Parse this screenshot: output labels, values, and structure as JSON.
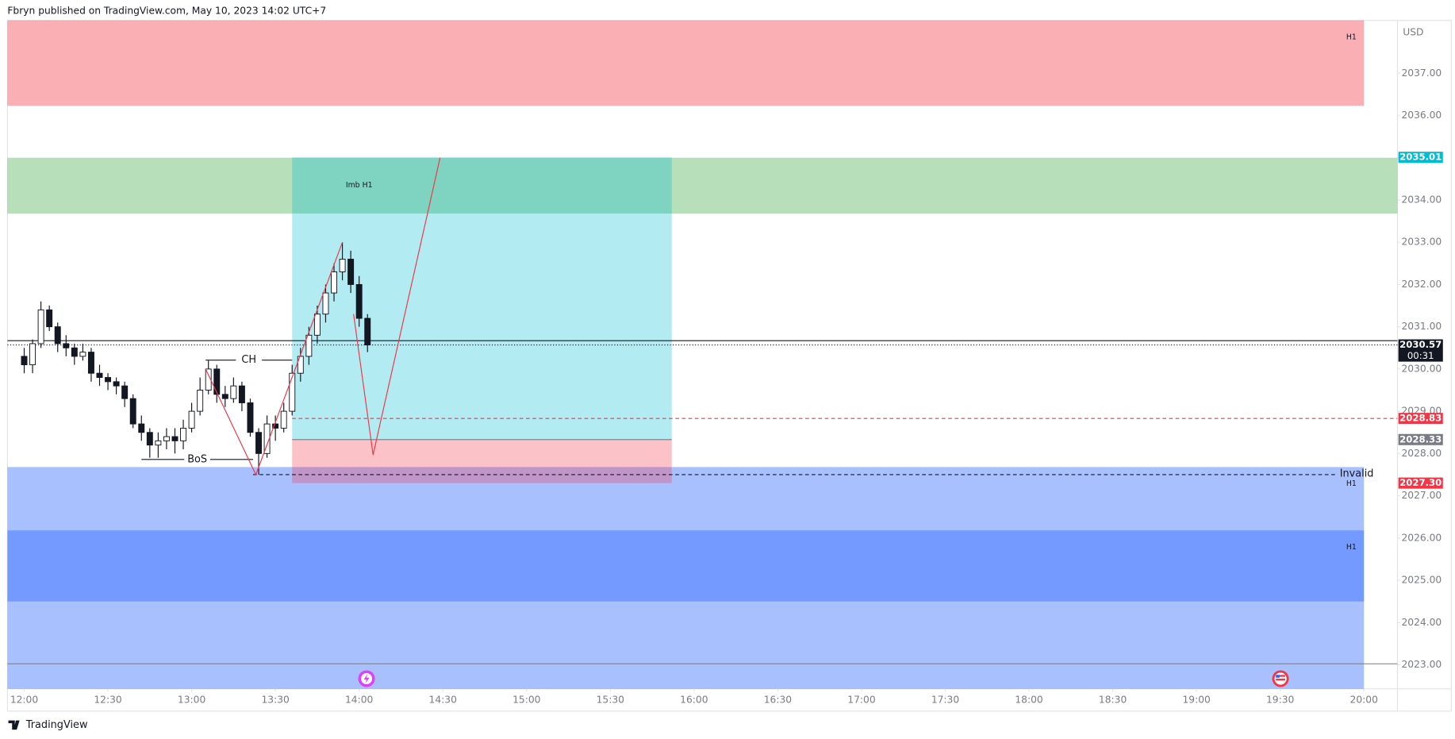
{
  "header": {
    "publisher": "Fbryn published on TradingView.com, May 10, 2023 14:02 UTC+7",
    "brand": "TradingView"
  },
  "chart_data": {
    "type": "candlestick",
    "currency": "USD",
    "xlim": [
      "11:54",
      "20:12"
    ],
    "ylim": [
      2022.43,
      2038.25
    ],
    "xticks": [
      "12:00",
      "12:30",
      "13:00",
      "13:30",
      "14:00",
      "14:30",
      "15:00",
      "15:30",
      "16:00",
      "16:30",
      "17:00",
      "17:30",
      "18:00",
      "18:30",
      "19:00",
      "19:30",
      "20:00"
    ],
    "yticks": [
      {
        "value": 2023,
        "label": "2023.00"
      },
      {
        "value": 2024,
        "label": "2024.00"
      },
      {
        "value": 2025,
        "label": "2025.00"
      },
      {
        "value": 2026,
        "label": "2026.00"
      },
      {
        "value": 2027,
        "label": "2027.00"
      },
      {
        "value": 2028,
        "label": "2028.00"
      },
      {
        "value": 2029,
        "label": "2029.00"
      },
      {
        "value": 2030,
        "label": "2030.00"
      },
      {
        "value": 2031,
        "label": "2031.00"
      },
      {
        "value": 2032,
        "label": "2032.00"
      },
      {
        "value": 2033,
        "label": "2033.00"
      },
      {
        "value": 2034,
        "label": "2034.00"
      },
      {
        "value": 2035,
        "label": "2035.00"
      },
      {
        "value": 2036,
        "label": "2036.00"
      },
      {
        "value": 2037,
        "label": "2037.00"
      }
    ],
    "x": [
      "12:00",
      "12:03",
      "12:06",
      "12:09",
      "12:12",
      "12:15",
      "12:18",
      "12:21",
      "12:24",
      "12:27",
      "12:30",
      "12:33",
      "12:36",
      "12:39",
      "12:42",
      "12:45",
      "12:48",
      "12:51",
      "12:54",
      "12:57",
      "13:00",
      "13:03",
      "13:06",
      "13:09",
      "13:12",
      "13:15",
      "13:18",
      "13:21",
      "13:24",
      "13:27",
      "13:30",
      "13:33",
      "13:36",
      "13:39",
      "13:42",
      "13:45",
      "13:48",
      "13:51",
      "13:54",
      "13:57",
      "14:00",
      "14:03"
    ],
    "open": [
      2030.3,
      2030.1,
      2030.6,
      2031.4,
      2031.0,
      2030.6,
      2030.5,
      2030.3,
      2030.4,
      2029.9,
      2029.8,
      2029.7,
      2029.6,
      2029.3,
      2028.7,
      2028.5,
      2028.2,
      2028.3,
      2028.4,
      2028.3,
      2028.6,
      2029.0,
      2029.5,
      2030.0,
      2029.4,
      2029.3,
      2029.6,
      2029.2,
      2028.5,
      2028.0,
      2028.7,
      2028.6,
      2029.0,
      2029.9,
      2030.3,
      2030.8,
      2031.3,
      2031.8,
      2032.3,
      2032.6,
      2032.0,
      2031.2
    ],
    "high": [
      2030.5,
      2030.7,
      2031.6,
      2031.5,
      2031.1,
      2030.8,
      2030.6,
      2030.6,
      2030.5,
      2030.1,
      2029.9,
      2029.8,
      2029.7,
      2029.4,
      2028.9,
      2028.6,
      2028.5,
      2028.6,
      2028.6,
      2028.8,
      2029.2,
      2029.8,
      2030.2,
      2030.1,
      2029.6,
      2029.8,
      2029.7,
      2029.3,
      2028.6,
      2028.9,
      2028.9,
      2029.2,
      2030.1,
      2030.5,
      2031.0,
      2031.5,
      2032.0,
      2032.5,
      2033.0,
      2032.8,
      2032.2,
      2031.3
    ],
    "low": [
      2029.9,
      2029.9,
      2030.5,
      2030.9,
      2030.4,
      2030.3,
      2030.1,
      2030.2,
      2029.7,
      2029.6,
      2029.5,
      2029.4,
      2029.1,
      2028.6,
      2028.3,
      2027.9,
      2027.9,
      2028.1,
      2028.0,
      2028.1,
      2028.5,
      2028.9,
      2029.4,
      2029.2,
      2029.1,
      2029.2,
      2029.0,
      2028.4,
      2027.5,
      2027.9,
      2028.3,
      2028.5,
      2028.9,
      2029.7,
      2030.1,
      2030.6,
      2031.1,
      2031.6,
      2032.1,
      2031.8,
      2031.0,
      2030.4
    ],
    "close": [
      2030.1,
      2030.6,
      2031.4,
      2031.0,
      2030.6,
      2030.5,
      2030.3,
      2030.4,
      2029.9,
      2029.8,
      2029.7,
      2029.6,
      2029.3,
      2028.7,
      2028.5,
      2028.2,
      2028.3,
      2028.4,
      2028.3,
      2028.6,
      2029.0,
      2029.5,
      2030.0,
      2029.4,
      2029.3,
      2029.6,
      2029.2,
      2028.5,
      2028.0,
      2028.7,
      2028.6,
      2029.0,
      2029.9,
      2030.3,
      2030.8,
      2031.3,
      2031.8,
      2032.3,
      2032.6,
      2032.0,
      2031.2,
      2030.57
    ],
    "zones": [
      {
        "label": "H1",
        "top": 2038.25,
        "bottom": 2036.23,
        "start": "11:54",
        "end": "20:00",
        "color": "rgba(242,54,69,0.4)"
      },
      {
        "top": 2035.0,
        "bottom": 2033.68,
        "start": "11:54",
        "end": "20:12",
        "color": "rgba(76,175,80,0.4)"
      },
      {
        "label": "H1",
        "top": 2027.68,
        "bottom": 2024.5,
        "start": "11:54",
        "end": "20:00",
        "color": "rgba(41,98,255,0.4)"
      },
      {
        "label": "H1",
        "top": 2026.18,
        "bottom": 2022.43,
        "start": "11:54",
        "end": "20:00",
        "color": "rgba(41,98,255,0.4)"
      }
    ],
    "position": {
      "start": "13:36",
      "end": "15:52",
      "target": 2035.01,
      "entry": 2028.33,
      "stop": 2027.3,
      "profit_color": "rgba(0,188,212,0.3)",
      "loss_color": "rgba(242,54,69,0.3)"
    },
    "lines": [
      {
        "value": 2030.67,
        "color": "#131722",
        "dash": "none",
        "start": "11:54"
      },
      {
        "value": 2030.57,
        "color": "#131722",
        "dash": "1 2",
        "start": "11:54"
      },
      {
        "value": 2028.83,
        "color": "#f23645",
        "dash": "4 3",
        "start": "13:36"
      },
      {
        "value": 2027.5,
        "color": "#131722",
        "dash": "4 3",
        "start": "13:22",
        "end": "19:50",
        "label": "Invalid"
      }
    ],
    "structure": [
      {
        "label": "CH",
        "value": 2030.21,
        "start": "13:05",
        "end": "13:36"
      },
      {
        "label": "BoS",
        "value": 2027.86,
        "start": "12:42",
        "end": "13:22"
      }
    ],
    "annotations": [
      {
        "text": "Imb H1",
        "time": "14:00",
        "price": 2034.35
      }
    ],
    "polylines": [
      {
        "color": "#f23645",
        "times": [
          "13:05",
          "13:23",
          "13:54"
        ],
        "prices": [
          2030.0,
          2027.5,
          2033.0
        ]
      },
      {
        "color": "#f23645",
        "times": [
          "13:58",
          "14:05",
          "14:29"
        ],
        "prices": [
          2031.3,
          2027.97,
          2035.0
        ]
      }
    ],
    "price_labels": [
      {
        "value": 2035.01,
        "label": "2035.01",
        "color": "#00bcd4"
      },
      {
        "value": 2030.57,
        "label": "2030.57",
        "color": "#131722",
        "countdown": "00:31"
      },
      {
        "value": 2028.83,
        "label": "2028.83",
        "color": "#f23645"
      },
      {
        "value": 2028.33,
        "label": "2028.33",
        "color": "#787b86"
      },
      {
        "value": 2027.3,
        "label": "2027.30",
        "color": "#f23645"
      }
    ]
  }
}
